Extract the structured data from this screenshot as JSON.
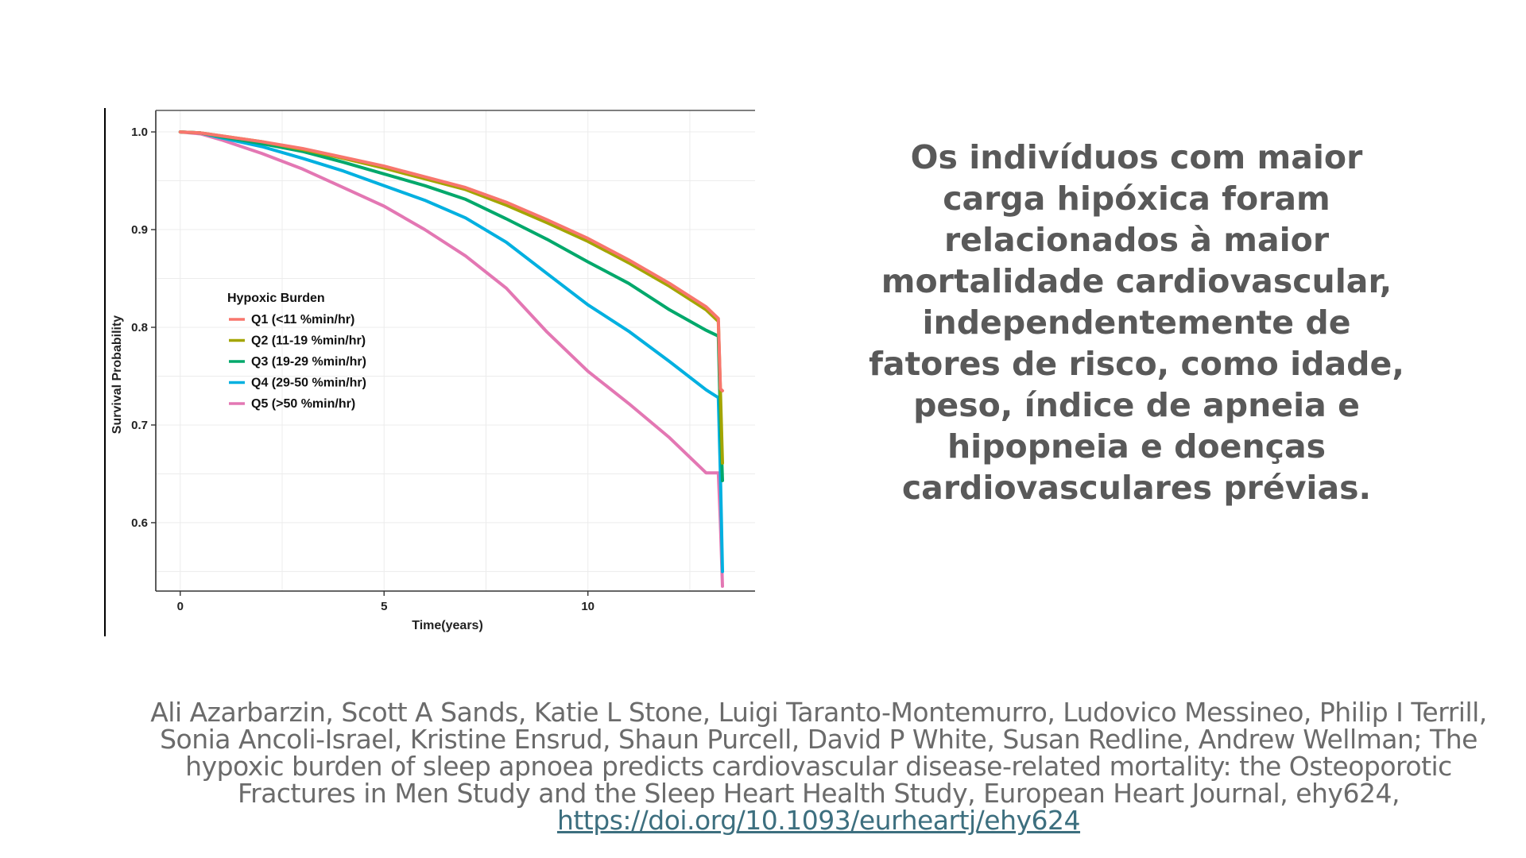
{
  "statement": "Os indivíduos com maior carga hipóxica foram relacionados à maior mortalidade cardiovascular, independentemente de fatores de risco, como idade, peso, índice de apneia e hipopneia e doenças cardiovasculares prévias.",
  "citation": {
    "text": "Ali Azarbarzin, Scott A Sands, Katie L Stone, Luigi Taranto-Montemurro, Ludovico Messineo, Philip I Terrill, Sonia Ancoli-Israel, Kristine Ensrud, Shaun Purcell, David P White, Susan Redline, Andrew Wellman; The hypoxic burden of sleep apnoea predicts cardiovascular disease-related mortality: the Osteoporotic Fractures in Men Study and the Sleep Heart Health Study, European Heart Journal, ehy624, ",
    "link": "https://doi.org/10.1093/eurheartj/ehy624"
  },
  "chart_data": {
    "type": "line",
    "title": "",
    "xlabel": "Time(years)",
    "ylabel": "Survival Probability",
    "xlim": [
      -0.6,
      14.1
    ],
    "ylim": [
      0.53,
      1.022
    ],
    "xticks": [
      0,
      5,
      10
    ],
    "xtick_labels": [
      "0",
      "5",
      "10"
    ],
    "yticks": [
      0.6,
      0.7,
      0.8,
      0.9,
      1.0
    ],
    "ytick_labels": [
      "0.6",
      "0.7",
      "0.8",
      "0.9",
      "1.0"
    ],
    "grid": true,
    "legend": {
      "title": "Hypoxic Burden",
      "placement": "center-left"
    },
    "series": [
      {
        "name": "Q1 (<11 %min/hr)",
        "color": "#f8766d",
        "x": [
          0,
          0.5,
          1,
          2,
          3,
          4,
          5,
          6,
          7,
          8,
          9,
          10,
          11,
          12,
          12.9,
          13.2,
          13.25,
          13.3
        ],
        "y": [
          1.0,
          0.999,
          0.996,
          0.99,
          0.983,
          0.974,
          0.965,
          0.954,
          0.943,
          0.928,
          0.91,
          0.891,
          0.869,
          0.845,
          0.821,
          0.809,
          0.737,
          0.735
        ]
      },
      {
        "name": "Q2 (11-19 %min/hr)",
        "color": "#a3a500",
        "x": [
          0,
          0.5,
          1,
          2,
          3,
          4,
          5,
          6,
          7,
          8,
          9,
          10,
          11,
          12,
          12.9,
          13.2,
          13.25,
          13.3
        ],
        "y": [
          1.0,
          0.999,
          0.996,
          0.99,
          0.982,
          0.973,
          0.963,
          0.952,
          0.941,
          0.925,
          0.907,
          0.888,
          0.866,
          0.842,
          0.818,
          0.806,
          0.735,
          0.661
        ]
      },
      {
        "name": "Q3 (19-29 %min/hr)",
        "color": "#00a86b",
        "x": [
          0,
          0.5,
          1,
          2,
          3,
          4,
          5,
          6,
          7,
          8,
          9,
          10,
          11,
          12,
          12.9,
          13.2,
          13.25,
          13.3
        ],
        "y": [
          1.0,
          0.999,
          0.995,
          0.988,
          0.98,
          0.969,
          0.957,
          0.945,
          0.931,
          0.911,
          0.89,
          0.867,
          0.845,
          0.818,
          0.797,
          0.791,
          0.706,
          0.643
        ]
      },
      {
        "name": "Q4 (29-50 %min/hr)",
        "color": "#00b0e0",
        "x": [
          0,
          0.5,
          1,
          2,
          3,
          4,
          5,
          6,
          7,
          8,
          9,
          10,
          11,
          12,
          12.9,
          13.2,
          13.25,
          13.3
        ],
        "y": [
          1.0,
          0.999,
          0.994,
          0.985,
          0.973,
          0.96,
          0.945,
          0.93,
          0.912,
          0.887,
          0.855,
          0.823,
          0.796,
          0.765,
          0.736,
          0.728,
          0.65,
          0.55
        ]
      },
      {
        "name": "Q5 (>50 %min/hr)",
        "color": "#e377b3",
        "x": [
          0,
          0.5,
          1,
          2,
          3,
          4,
          5,
          6,
          7,
          8,
          9,
          10,
          11,
          12,
          12.9,
          13.2,
          13.25,
          13.3
        ],
        "y": [
          1.0,
          0.998,
          0.992,
          0.978,
          0.962,
          0.943,
          0.924,
          0.9,
          0.873,
          0.84,
          0.795,
          0.755,
          0.722,
          0.687,
          0.651,
          0.651,
          0.6,
          0.535
        ]
      }
    ]
  }
}
